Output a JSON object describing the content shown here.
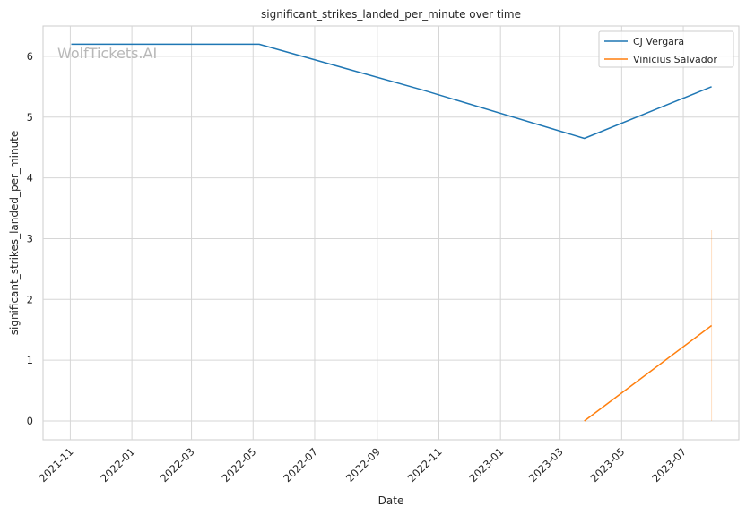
{
  "chart_data": {
    "type": "line",
    "title": "significant_strikes_landed_per_minute over time",
    "xlabel": "Date",
    "ylabel": "significant_strikes_landed_per_minute",
    "watermark": "WolfTickets.AI",
    "x_ticks": [
      "2021-11",
      "2022-01",
      "2022-03",
      "2022-05",
      "2022-07",
      "2022-09",
      "2022-11",
      "2023-01",
      "2023-03",
      "2023-05",
      "2023-07"
    ],
    "x_tick_dates": [
      "2021-11-01",
      "2022-01-01",
      "2022-03-01",
      "2022-05-01",
      "2022-07-01",
      "2022-09-01",
      "2022-11-01",
      "2023-01-01",
      "2023-03-01",
      "2023-05-01",
      "2023-07-01"
    ],
    "y_ticks": [
      0,
      1,
      2,
      3,
      4,
      5,
      6
    ],
    "xlim": [
      "2021-10-05",
      "2023-08-25"
    ],
    "ylim": [
      -0.31,
      6.5
    ],
    "grid": true,
    "legend_position": "top-right",
    "series": [
      {
        "name": "CJ Vergara",
        "color": "#1f77b4",
        "points": [
          {
            "x": "2021-11-02",
            "y": 6.2
          },
          {
            "x": "2022-05-07",
            "y": 6.2
          },
          {
            "x": "2022-10-15",
            "y": 5.45
          },
          {
            "x": "2023-03-25",
            "y": 4.65
          },
          {
            "x": "2023-07-29",
            "y": 5.5
          }
        ]
      },
      {
        "name": "Vinicius Salvador",
        "color": "#ff7f0e",
        "points": [
          {
            "x": "2023-03-25",
            "y": 0.0
          },
          {
            "x": "2023-07-29",
            "y": 1.57
          }
        ],
        "error_band": {
          "x": "2023-07-29",
          "low": 0.0,
          "high": 3.14
        }
      }
    ]
  }
}
